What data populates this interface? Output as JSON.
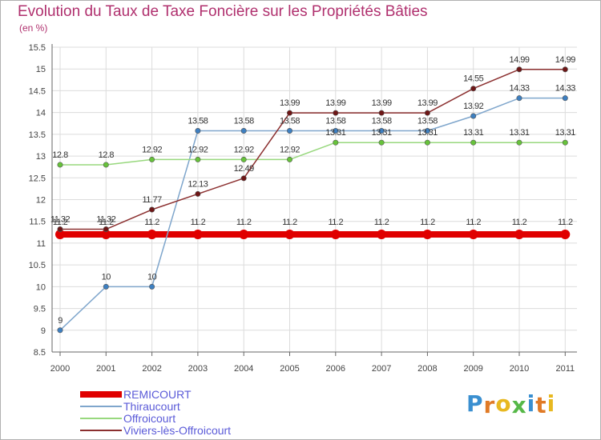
{
  "header": {
    "title": "Evolution du Taux de Taxe Foncière sur les Propriétés Bâties",
    "unit": "(en %)"
  },
  "logo": {
    "letters": [
      "P",
      "r",
      "o",
      "x",
      "i",
      "t",
      "i"
    ],
    "colors": [
      "#3a8fd0",
      "#e07a26",
      "#e8b820",
      "#56b848",
      "#3a8fd0",
      "#e07a26",
      "#e8b820"
    ]
  },
  "chart_data": {
    "type": "line",
    "x": [
      "2000",
      "2001",
      "2002",
      "2003",
      "2004",
      "2005",
      "2006",
      "2007",
      "2008",
      "2009",
      "2010",
      "2011"
    ],
    "ylim": [
      8.5,
      15.5
    ],
    "yticks": [
      "8.5",
      "9",
      "9.5",
      "10",
      "10.5",
      "11",
      "11.5",
      "12",
      "12.5",
      "13",
      "13.5",
      "14",
      "14.5",
      "15",
      "15.5"
    ],
    "grid": true,
    "legend_position": "bottom-left",
    "series": [
      {
        "name": "REMICOURT",
        "color": "#e00000",
        "values": [
          11.2,
          11.2,
          11.2,
          11.2,
          11.2,
          11.2,
          11.2,
          11.2,
          11.2,
          11.2,
          11.2,
          11.2
        ],
        "labels": [
          "11.2",
          "11.2",
          "11.2",
          "11.2",
          "11.2",
          "11.2",
          "11.2",
          "11.2",
          "11.2",
          "11.2",
          "11.2",
          "11.2"
        ]
      },
      {
        "name": "Thiraucourt",
        "color": "#7fa6cc",
        "marker": "#3d7fc1",
        "values": [
          9,
          10,
          10,
          13.58,
          13.58,
          13.58,
          13.58,
          13.58,
          13.58,
          13.92,
          14.33,
          14.33
        ],
        "labels": [
          "9",
          "10",
          "10",
          "13.58",
          "13.58",
          "13.58",
          "13.58",
          "13.58",
          "13.58",
          "13.92",
          "14.33",
          "14.33"
        ]
      },
      {
        "name": "Offroicourt",
        "color": "#98d87e",
        "marker": "#66c23a",
        "values": [
          12.8,
          12.8,
          12.92,
          12.92,
          12.92,
          12.92,
          13.31,
          13.31,
          13.31,
          13.31,
          13.31,
          13.31
        ],
        "labels": [
          "12.8",
          "12.8",
          "12.92",
          "12.92",
          "12.92",
          "12.92",
          "13.31",
          "13.31",
          "13.31",
          "13.31",
          "13.31",
          "13.31"
        ]
      },
      {
        "name": "Viviers-lès-Offroicourt",
        "color": "#8b2f2f",
        "marker": "#6e1616",
        "values": [
          11.32,
          11.32,
          11.77,
          12.13,
          12.49,
          13.99,
          13.99,
          13.99,
          13.99,
          14.55,
          14.99,
          14.99
        ],
        "labels": [
          "11.32",
          "11.32",
          "11.77",
          "12.13",
          "12.49",
          "13.99",
          "13.99",
          "13.99",
          "13.99",
          "14.55",
          "14.99",
          "14.99"
        ]
      }
    ]
  }
}
